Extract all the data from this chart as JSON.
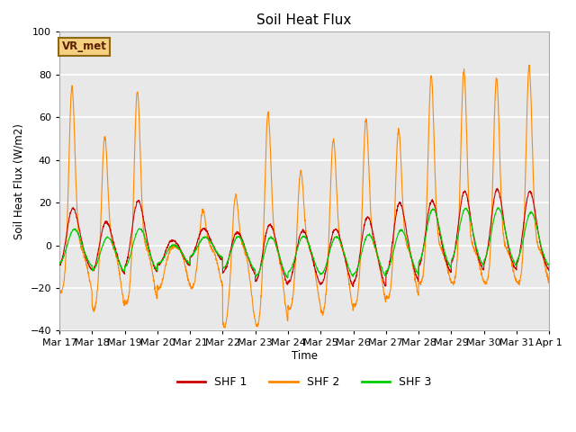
{
  "title": "Soil Heat Flux",
  "ylabel": "Soil Heat Flux (W/m2)",
  "xlabel": "Time",
  "ylim": [
    -40,
    100
  ],
  "yticks": [
    -40,
    -20,
    0,
    20,
    40,
    60,
    80,
    100
  ],
  "background_color": "#ffffff",
  "plot_bg_color": "#e8e8e8",
  "grid_color": "#ffffff",
  "colors": {
    "SHF 1": "#cc0000",
    "SHF 2": "#ff8800",
    "SHF 3": "#00cc00"
  },
  "legend_label": "VR_met",
  "x_tick_labels": [
    "Mar 17",
    "Mar 18",
    "Mar 19",
    "Mar 20",
    "Mar 21",
    "Mar 22",
    "Mar 23",
    "Mar 24",
    "Mar 25",
    "Mar 26",
    "Mar 27",
    "Mar 28",
    "Mar 29",
    "Mar 30",
    "Mar 31",
    "Apr 1"
  ],
  "n_days": 15,
  "pts_per_day": 144,
  "shf2_peaks": [
    77,
    55,
    76,
    0,
    19,
    28,
    67,
    39,
    54,
    63,
    58,
    82,
    84,
    81,
    86,
    75
  ],
  "shf2_troughs": [
    -22,
    -30,
    -27,
    -20,
    -20,
    -38,
    -38,
    -30,
    -32,
    -28,
    -25,
    -18,
    -18,
    -18,
    -18,
    -18
  ],
  "shf1_peaks": [
    21,
    15,
    25,
    5,
    10,
    10,
    15,
    12,
    13,
    19,
    25,
    25,
    29,
    30,
    29,
    24
  ],
  "shf1_troughs": [
    -12,
    -14,
    -13,
    -10,
    -7,
    -14,
    -19,
    -19,
    -20,
    -20,
    -17,
    -13,
    -12,
    -12,
    -12,
    -12
  ],
  "shf3_peaks": [
    11,
    8,
    12,
    3,
    6,
    8,
    9,
    9,
    9,
    10,
    12,
    21,
    21,
    21,
    19,
    17
  ],
  "shf3_troughs": [
    -10,
    -13,
    -12,
    -9,
    -6,
    -12,
    -16,
    -14,
    -15,
    -15,
    -14,
    -11,
    -10,
    -10,
    -10,
    -10
  ]
}
